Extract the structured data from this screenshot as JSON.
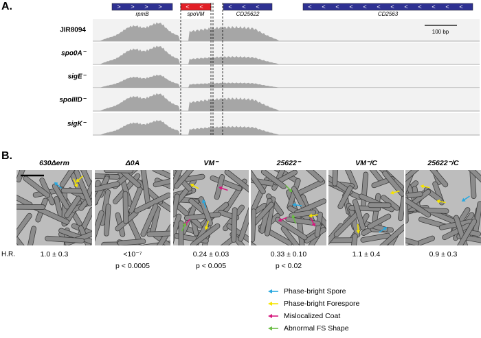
{
  "panel_a": {
    "label": "A.",
    "genes": [
      "rpmB",
      "spoVM",
      "CD25622",
      "CD2563"
    ],
    "tracks": [
      "JIR8094",
      "spo0A⁻",
      "sigE⁻",
      "spoIIID⁻",
      "sigK⁻"
    ],
    "scale_bar": "100 bp"
  },
  "panel_b": {
    "label": "B.",
    "row_label": "H.R.",
    "columns": [
      {
        "title": "630Δerm",
        "hr": "1.0 ± 0.3"
      },
      {
        "title": "Δ0A",
        "hr": "<10⁻⁷",
        "p": "p < 0.0005"
      },
      {
        "title": "VM⁻",
        "hr": "0.24 ± 0.03",
        "p": "p < 0.005"
      },
      {
        "title": "25622⁻",
        "hr": "0.33 ± 0.10",
        "p": "p < 0.02"
      },
      {
        "title": "VM⁻/C",
        "hr": "1.1 ± 0.4"
      },
      {
        "title": "25622⁻/C",
        "hr": "0.9 ± 0.3"
      }
    ]
  },
  "legend": [
    "Phase-bright Spore",
    "Phase-bright Forespore",
    "Mislocalized Coat",
    "Abnormal FS Shape"
  ]
}
